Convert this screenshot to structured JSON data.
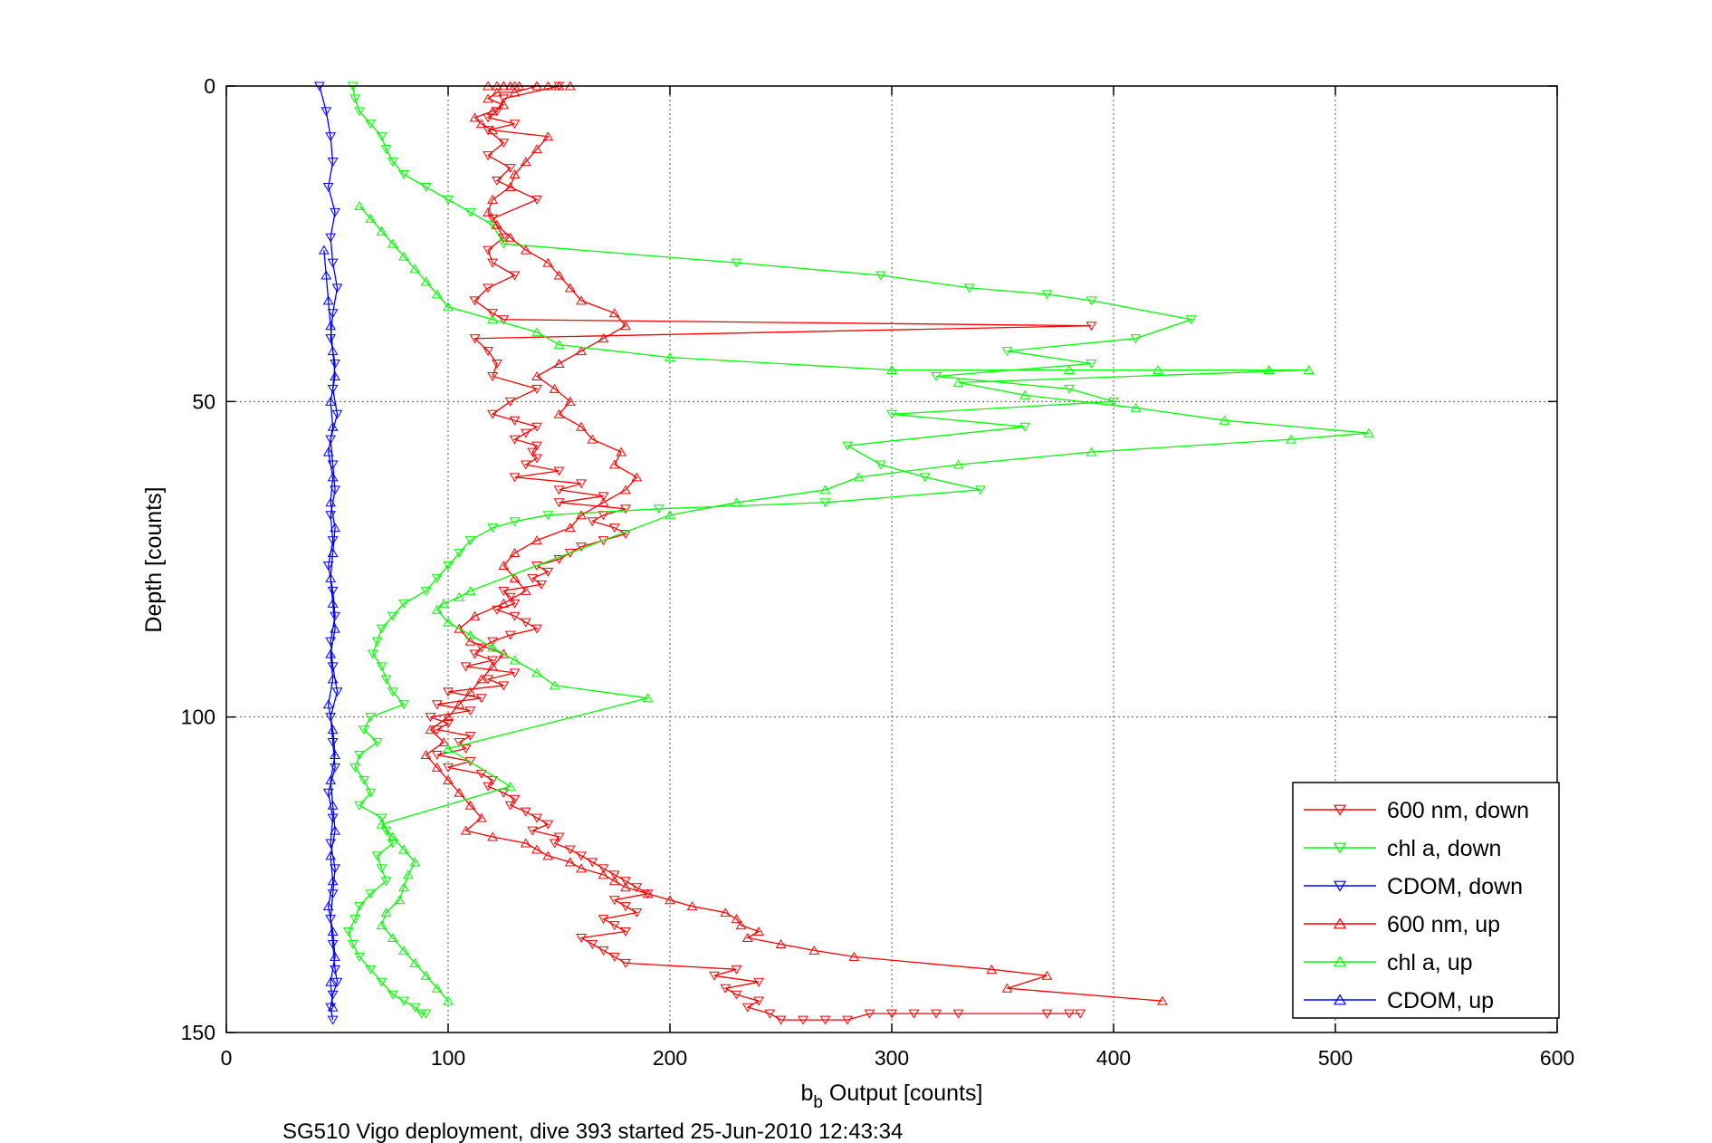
{
  "caption": "SG510 Vigo deployment, dive 393 started 25-Jun-2010 12:43:34",
  "chart_data": {
    "type": "line",
    "title": "",
    "xlabel_main": "b",
    "xlabel_sub": "b",
    "xlabel_rest": " Output [counts]",
    "ylabel": "Depth [counts]",
    "xlim": [
      0,
      600
    ],
    "ylim": [
      0,
      150
    ],
    "y_reversed": true,
    "grid": true,
    "legend_position": "bottom-right",
    "x_ticks": [
      "0",
      "100",
      "200",
      "300",
      "400",
      "500",
      "600"
    ],
    "y_ticks": [
      "0",
      "50",
      "100",
      "150"
    ],
    "series": [
      {
        "name": "600 nm, down",
        "color": "#ff0000",
        "marker": "triangle-down",
        "x": [
          150,
          125,
          122,
          118,
          130,
          118,
          125,
          118,
          128,
          122,
          140,
          120,
          125,
          118,
          120,
          130,
          118,
          112,
          120,
          125,
          390,
          112,
          118,
          122,
          120,
          140,
          128,
          120,
          130,
          140,
          135,
          130,
          140,
          138,
          140,
          135,
          150,
          130,
          160,
          150,
          170,
          150,
          180,
          170,
          165,
          175,
          180,
          170,
          160,
          155,
          150,
          140,
          145,
          138,
          142,
          125,
          128,
          130,
          122,
          130,
          135,
          140,
          128,
          120,
          115,
          112,
          120,
          108,
          130,
          118,
          125,
          100,
          115,
          95,
          110,
          92,
          100,
          95,
          110,
          105,
          108,
          95,
          110,
          100,
          115,
          120,
          118,
          125,
          130,
          128,
          135,
          140,
          145,
          138,
          150,
          148,
          155,
          160,
          165,
          170,
          175,
          180,
          185,
          190,
          175,
          180,
          185,
          170,
          175,
          180,
          160,
          165,
          170,
          175,
          180,
          230,
          220,
          240,
          225,
          230,
          240,
          235,
          245,
          250,
          260,
          270,
          280,
          290,
          300,
          310,
          320,
          330,
          380,
          370,
          385
        ],
        "y": [
          0,
          2,
          4,
          5,
          6,
          7,
          9,
          11,
          13,
          15,
          18,
          21,
          24,
          26,
          28,
          30,
          32,
          34,
          36,
          37,
          38,
          40,
          42,
          44,
          46,
          48,
          50,
          52,
          53,
          54,
          55,
          56,
          57,
          58,
          59,
          60,
          61,
          62,
          63,
          64,
          65,
          66,
          67,
          68,
          69,
          70,
          71,
          72,
          73,
          74,
          75,
          76,
          77,
          78,
          79,
          80,
          81,
          82,
          83,
          84,
          85,
          86,
          87,
          88,
          89,
          90,
          91,
          92,
          93,
          94,
          95,
          96,
          97,
          98,
          99,
          100,
          101,
          102,
          103,
          104,
          105,
          106,
          107,
          108,
          109,
          110,
          111,
          112,
          113,
          114,
          115,
          116,
          117,
          118,
          119,
          120,
          121,
          122,
          123,
          124,
          125,
          126,
          127,
          128,
          129,
          130,
          131,
          132,
          133,
          134,
          135,
          136,
          137,
          138,
          139,
          140,
          141,
          142,
          143,
          144,
          145,
          146,
          147,
          148,
          148,
          148,
          148,
          147,
          147,
          147,
          147,
          147,
          147,
          147,
          147
        ]
      },
      {
        "name": "chl a, down",
        "color": "#00ff00",
        "marker": "triangle-down",
        "x": [
          57,
          58,
          60,
          65,
          70,
          72,
          75,
          80,
          90,
          100,
          110,
          120,
          125,
          230,
          295,
          335,
          370,
          390,
          435,
          410,
          352,
          390,
          320,
          380,
          400,
          300,
          360,
          280,
          295,
          315,
          340,
          270,
          195,
          145,
          130,
          120,
          110,
          105,
          100,
          95,
          90,
          80,
          75,
          70,
          68,
          66,
          70,
          72,
          75,
          80,
          65,
          62,
          68,
          60,
          58,
          62,
          65,
          60,
          70,
          72,
          75,
          68,
          70,
          72,
          65,
          60,
          58,
          55,
          57,
          60,
          65,
          70,
          75,
          80,
          85,
          88,
          90
        ],
        "y": [
          0,
          2,
          4,
          6,
          8,
          10,
          12,
          14,
          16,
          18,
          20,
          22,
          25,
          28,
          30,
          32,
          33,
          34,
          37,
          40,
          42,
          44,
          46,
          48,
          50,
          52,
          54,
          57,
          60,
          62,
          64,
          66,
          67,
          68,
          69,
          70,
          72,
          74,
          76,
          78,
          80,
          82,
          84,
          86,
          88,
          90,
          92,
          94,
          96,
          98,
          100,
          102,
          104,
          106,
          108,
          110,
          112,
          114,
          116,
          118,
          120,
          122,
          124,
          126,
          128,
          130,
          132,
          134,
          136,
          138,
          140,
          142,
          144,
          145,
          146,
          147,
          147
        ]
      },
      {
        "name": "CDOM, down",
        "color": "#0000ff",
        "marker": "triangle-down",
        "x": [
          42,
          45,
          47,
          48,
          46,
          49,
          47,
          48,
          50,
          48,
          47,
          49,
          48,
          50,
          47,
          48,
          49,
          47,
          48,
          46,
          48,
          49,
          47,
          48,
          50,
          47,
          48,
          49,
          46,
          48,
          47,
          49,
          48,
          47,
          48,
          49,
          50,
          48,
          47,
          48
        ],
        "y": [
          0,
          4,
          8,
          12,
          16,
          20,
          24,
          28,
          32,
          36,
          40,
          44,
          48,
          52,
          56,
          60,
          64,
          68,
          72,
          76,
          80,
          84,
          88,
          92,
          96,
          100,
          104,
          108,
          112,
          116,
          120,
          124,
          128,
          132,
          136,
          140,
          142,
          144,
          146,
          148
        ]
      },
      {
        "name": "600 nm, up",
        "color": "#ff0000",
        "marker": "triangle-up",
        "x": [
          422,
          352,
          370,
          345,
          283,
          265,
          250,
          235,
          240,
          232,
          230,
          225,
          210,
          200,
          190,
          180,
          175,
          170,
          160,
          155,
          145,
          140,
          135,
          120,
          108,
          115,
          110,
          105,
          100,
          95,
          90,
          98,
          92,
          100,
          105,
          110,
          115,
          120,
          125,
          110,
          105,
          112,
          125,
          135,
          130,
          125,
          130,
          140,
          155,
          160,
          170,
          180,
          185,
          175,
          178,
          165,
          160,
          150,
          155,
          148,
          140,
          150,
          160,
          170,
          180,
          175,
          160,
          155,
          150,
          145,
          135,
          128,
          122,
          118,
          120,
          128,
          130,
          135,
          140,
          145,
          120,
          115,
          112,
          120,
          125,
          118,
          122,
          130,
          140,
          155,
          145,
          125,
          118,
          122,
          128,
          132,
          140,
          130,
          125,
          150
        ],
        "y": [
          145,
          143,
          141,
          140,
          138,
          137,
          136,
          135,
          134,
          133,
          132,
          131,
          130,
          129,
          128,
          127,
          126,
          125,
          124,
          123,
          122,
          121,
          120,
          119,
          118,
          116,
          114,
          112,
          110,
          108,
          106,
          104,
          102,
          100,
          98,
          96,
          94,
          92,
          90,
          88,
          86,
          84,
          82,
          80,
          78,
          76,
          74,
          72,
          70,
          68,
          66,
          64,
          62,
          60,
          58,
          56,
          54,
          52,
          50,
          48,
          46,
          44,
          42,
          40,
          38,
          36,
          34,
          32,
          30,
          28,
          26,
          24,
          22,
          20,
          18,
          16,
          14,
          12,
          10,
          8,
          7,
          6,
          5,
          4,
          3,
          2,
          1,
          1,
          0,
          0,
          0,
          0,
          0,
          0,
          0,
          0,
          0,
          0,
          0,
          0
        ]
      },
      {
        "name": "chl a, up",
        "color": "#00ff00",
        "marker": "triangle-up",
        "x": [
          100,
          95,
          90,
          85,
          80,
          75,
          70,
          72,
          78,
          80,
          82,
          85,
          80,
          75,
          70,
          128,
          100,
          190,
          148,
          140,
          130,
          120,
          110,
          100,
          95,
          98,
          105,
          110,
          200,
          230,
          270,
          285,
          330,
          390,
          480,
          515,
          450,
          410,
          360,
          330,
          488,
          470,
          420,
          380,
          300,
          200,
          150,
          140,
          120,
          100,
          95,
          90,
          85,
          80,
          75,
          70,
          65,
          60
        ],
        "y": [
          145,
          143,
          141,
          139,
          137,
          135,
          133,
          131,
          129,
          127,
          125,
          123,
          121,
          119,
          117,
          111,
          105,
          97,
          95,
          93,
          91,
          89,
          87,
          85,
          83,
          82,
          81,
          80,
          68,
          66,
          64,
          62,
          60,
          58,
          56,
          55,
          53,
          51,
          49,
          47,
          45,
          45,
          45,
          45,
          45,
          43,
          41,
          39,
          37,
          35,
          33,
          31,
          29,
          27,
          25,
          23,
          21,
          19
        ]
      },
      {
        "name": "CDOM, up",
        "color": "#0000ff",
        "marker": "triangle-up",
        "x": [
          48,
          47,
          49,
          48,
          46,
          48,
          47,
          49,
          48,
          47,
          49,
          48,
          46,
          48,
          47,
          49,
          48,
          47,
          48,
          49,
          47,
          48,
          46,
          48,
          47,
          49,
          48,
          47,
          46,
          45,
          44
        ],
        "y": [
          146,
          142,
          138,
          134,
          130,
          126,
          122,
          118,
          114,
          110,
          106,
          102,
          98,
          94,
          90,
          86,
          82,
          78,
          74,
          70,
          66,
          62,
          58,
          54,
          50,
          46,
          42,
          38,
          34,
          30,
          26
        ]
      }
    ]
  }
}
